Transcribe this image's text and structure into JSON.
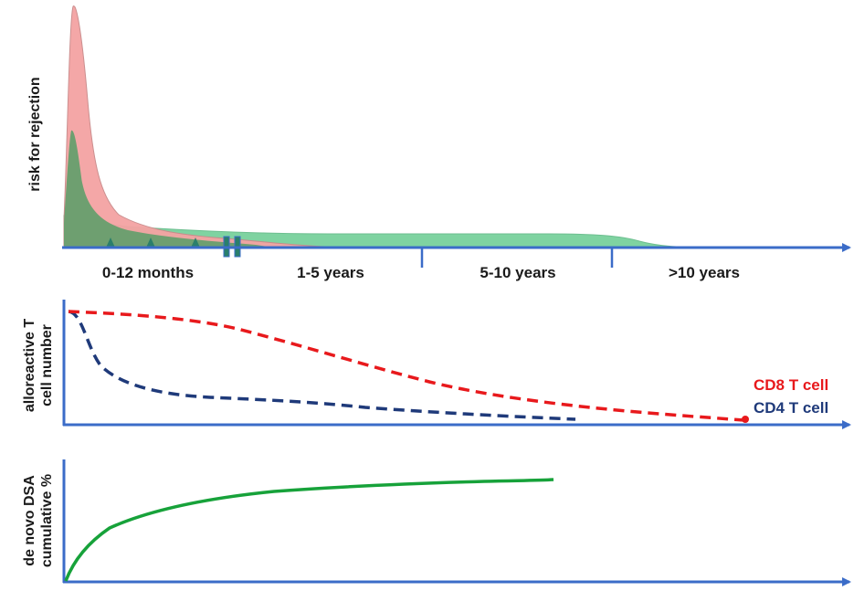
{
  "panel1": {
    "ylabel": "risk for rejection",
    "time_labels": [
      "0-12 months",
      "1-5 years",
      "5-10 years",
      ">10 years"
    ]
  },
  "panel2": {
    "ylabel_line1": "alloreactive T",
    "ylabel_line2": "cell number",
    "legend": [
      {
        "label": "CD8 T cell",
        "color": "#e8191c"
      },
      {
        "label": "CD4 T cell",
        "color": "#1f3a7a"
      }
    ]
  },
  "panel3": {
    "ylabel_line1": "de novo DSA",
    "ylabel_line2": "cumulative %"
  },
  "colors": {
    "axis": "#3b6cc8",
    "red_area": "#f4a3a3",
    "green_area": "#7fd3a1",
    "dark_green_area": "#5f9e6a",
    "dsa_line": "#17a23a",
    "marker": "#2a7f6b"
  }
}
